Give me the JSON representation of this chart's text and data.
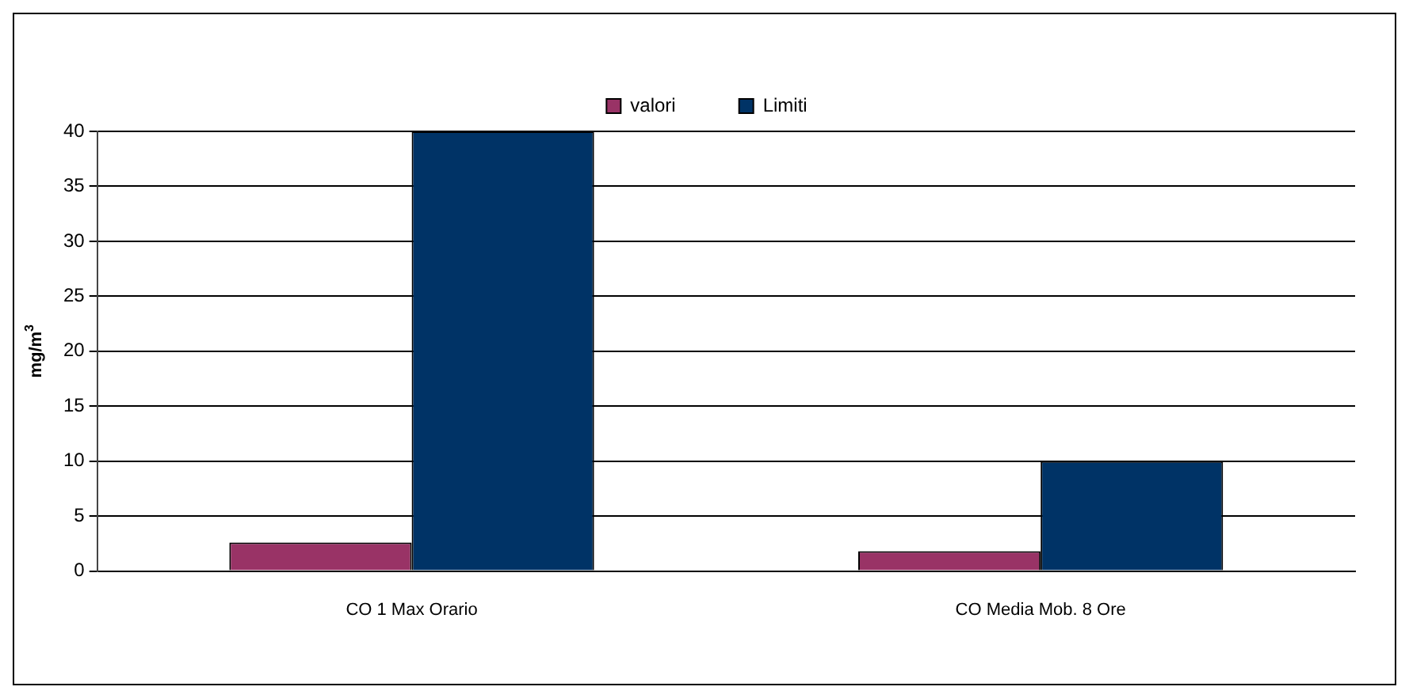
{
  "chart_data": {
    "type": "bar",
    "ylabel": "mg/m$^{3}$",
    "categories": [
      "CO 1 Max Orario",
      "CO Media Mob. 8 Ore"
    ],
    "series": [
      {
        "name": "valori",
        "color": "#993366",
        "values": [
          2.6,
          1.8
        ]
      },
      {
        "name": "Limiti",
        "color": "#003366",
        "values": [
          40,
          10
        ]
      }
    ],
    "ylim": [
      0,
      40
    ],
    "yticks": [
      0,
      5,
      10,
      15,
      20,
      25,
      30,
      35,
      40
    ],
    "grid": "y",
    "legend": "top"
  }
}
